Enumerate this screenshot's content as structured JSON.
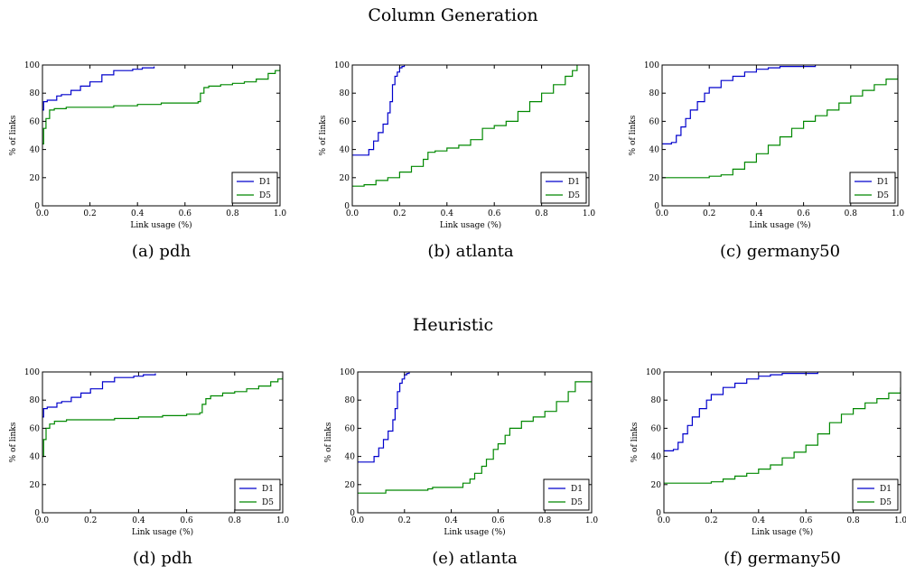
{
  "sections": {
    "top_title": "Column Generation",
    "bottom_title": "Heuristic"
  },
  "colors": {
    "D1": "#0000cc",
    "D5": "#008800",
    "axis": "#000000"
  },
  "chart_data": [
    {
      "type": "line",
      "caption": "(a) pdh",
      "xlabel": "Link usage (%)",
      "ylabel": "% of links",
      "xlim": [
        0,
        1
      ],
      "ylim": [
        0,
        100
      ],
      "xticks": [
        "0.0",
        "0.2",
        "0.4",
        "0.6",
        "0.8",
        "1.0"
      ],
      "yticks": [
        "0",
        "20",
        "40",
        "60",
        "80",
        "100"
      ],
      "legend": "lower-right",
      "series": [
        {
          "name": "D1",
          "x": [
            0,
            0.005,
            0.02,
            0.06,
            0.08,
            0.12,
            0.16,
            0.2,
            0.25,
            0.3,
            0.38,
            0.42,
            0.47
          ],
          "y": [
            68,
            74,
            75,
            78,
            79,
            82,
            85,
            88,
            93,
            96,
            97,
            98,
            99
          ]
        },
        {
          "name": "D5",
          "x": [
            0,
            0.005,
            0.015,
            0.03,
            0.05,
            0.1,
            0.2,
            0.3,
            0.4,
            0.5,
            0.6,
            0.655,
            0.665,
            0.68,
            0.7,
            0.75,
            0.8,
            0.85,
            0.9,
            0.95,
            0.98,
            1.0
          ],
          "y": [
            44,
            55,
            62,
            68,
            69,
            70,
            70,
            71,
            72,
            73,
            73,
            74,
            80,
            84,
            85,
            86,
            87,
            88,
            90,
            94,
            96,
            99
          ]
        }
      ]
    },
    {
      "type": "line",
      "caption": "(b) atlanta",
      "xlabel": "Link usage (%)",
      "ylabel": "% of links",
      "xlim": [
        0,
        1
      ],
      "ylim": [
        0,
        100
      ],
      "xticks": [
        "0.0",
        "0.2",
        "0.4",
        "0.6",
        "0.8",
        "1.0"
      ],
      "yticks": [
        "0",
        "20",
        "40",
        "60",
        "80",
        "100"
      ],
      "legend": "lower-right",
      "series": [
        {
          "name": "D1",
          "x": [
            0,
            0.06,
            0.07,
            0.09,
            0.11,
            0.13,
            0.15,
            0.16,
            0.17,
            0.18,
            0.19,
            0.2,
            0.21,
            0.22
          ],
          "y": [
            36,
            36,
            40,
            46,
            52,
            58,
            66,
            74,
            86,
            92,
            95,
            98,
            99,
            100
          ]
        },
        {
          "name": "D5",
          "x": [
            0,
            0.05,
            0.1,
            0.15,
            0.2,
            0.25,
            0.3,
            0.32,
            0.35,
            0.4,
            0.45,
            0.5,
            0.55,
            0.6,
            0.65,
            0.7,
            0.75,
            0.8,
            0.85,
            0.9,
            0.93,
            0.95
          ],
          "y": [
            14,
            15,
            18,
            20,
            24,
            28,
            33,
            38,
            39,
            41,
            43,
            47,
            55,
            57,
            60,
            67,
            74,
            80,
            86,
            92,
            96,
            100
          ]
        }
      ]
    },
    {
      "type": "line",
      "caption": "(c) germany50",
      "xlabel": "Link usage (%)",
      "ylabel": "% of links",
      "xlim": [
        0,
        1
      ],
      "ylim": [
        0,
        100
      ],
      "xticks": [
        "0.0",
        "0.2",
        "0.4",
        "0.6",
        "0.8",
        "1.0"
      ],
      "yticks": [
        "0",
        "20",
        "40",
        "60",
        "80",
        "100"
      ],
      "legend": "lower-right",
      "series": [
        {
          "name": "D1",
          "x": [
            0,
            0.04,
            0.06,
            0.08,
            0.1,
            0.12,
            0.15,
            0.18,
            0.2,
            0.25,
            0.3,
            0.35,
            0.4,
            0.45,
            0.5,
            0.55,
            0.65
          ],
          "y": [
            44,
            45,
            50,
            56,
            62,
            68,
            74,
            80,
            84,
            89,
            92,
            95,
            97,
            98,
            99,
            99,
            100
          ]
        },
        {
          "name": "D5",
          "x": [
            0,
            0.1,
            0.2,
            0.25,
            0.3,
            0.35,
            0.4,
            0.45,
            0.5,
            0.55,
            0.6,
            0.65,
            0.7,
            0.75,
            0.8,
            0.85,
            0.9,
            0.95,
            1.0
          ],
          "y": [
            20,
            20,
            21,
            22,
            26,
            31,
            37,
            43,
            49,
            55,
            60,
            64,
            68,
            73,
            78,
            82,
            86,
            90,
            93
          ]
        }
      ]
    },
    {
      "type": "line",
      "caption": "(d) pdh",
      "xlabel": "Link usage (%)",
      "ylabel": "% of links",
      "xlim": [
        0,
        1
      ],
      "ylim": [
        0,
        100
      ],
      "xticks": [
        "0.0",
        "0.2",
        "0.4",
        "0.6",
        "0.8",
        "1.0"
      ],
      "yticks": [
        "0",
        "20",
        "40",
        "60",
        "80",
        "100"
      ],
      "legend": "lower-right",
      "series": [
        {
          "name": "D1",
          "x": [
            0,
            0.005,
            0.02,
            0.06,
            0.08,
            0.12,
            0.16,
            0.2,
            0.25,
            0.3,
            0.38,
            0.42,
            0.47
          ],
          "y": [
            68,
            74,
            75,
            78,
            79,
            82,
            85,
            88,
            93,
            96,
            97,
            98,
            99
          ]
        },
        {
          "name": "D5",
          "x": [
            0,
            0.005,
            0.015,
            0.03,
            0.05,
            0.1,
            0.2,
            0.3,
            0.4,
            0.5,
            0.6,
            0.655,
            0.665,
            0.68,
            0.7,
            0.75,
            0.8,
            0.85,
            0.9,
            0.95,
            0.98,
            1.0
          ],
          "y": [
            40,
            52,
            60,
            63,
            65,
            66,
            66,
            67,
            68,
            69,
            70,
            71,
            77,
            81,
            83,
            85,
            86,
            88,
            90,
            93,
            95,
            97
          ]
        }
      ]
    },
    {
      "type": "line",
      "caption": "(e) atlanta",
      "xlabel": "Link usage (%)",
      "ylabel": "% of links",
      "xlim": [
        0,
        1
      ],
      "ylim": [
        0,
        100
      ],
      "xticks": [
        "0.0",
        "0.2",
        "0.4",
        "0.6",
        "0.8",
        "1.0"
      ],
      "yticks": [
        "0",
        "20",
        "40",
        "60",
        "80",
        "100"
      ],
      "legend": "lower-right",
      "series": [
        {
          "name": "D1",
          "x": [
            0,
            0.06,
            0.07,
            0.09,
            0.11,
            0.13,
            0.15,
            0.16,
            0.17,
            0.18,
            0.19,
            0.2,
            0.21,
            0.22
          ],
          "y": [
            36,
            36,
            40,
            46,
            52,
            58,
            66,
            74,
            86,
            92,
            95,
            98,
            99,
            100
          ]
        },
        {
          "name": "D5",
          "x": [
            0,
            0.1,
            0.12,
            0.2,
            0.3,
            0.32,
            0.4,
            0.45,
            0.48,
            0.5,
            0.53,
            0.55,
            0.58,
            0.6,
            0.63,
            0.65,
            0.7,
            0.75,
            0.8,
            0.85,
            0.9,
            0.93,
            1.0
          ],
          "y": [
            14,
            14,
            16,
            16,
            17,
            18,
            18,
            21,
            24,
            28,
            33,
            38,
            45,
            49,
            55,
            60,
            65,
            68,
            72,
            79,
            86,
            93,
            93
          ]
        }
      ]
    },
    {
      "type": "line",
      "caption": "(f) germany50",
      "xlabel": "Link usage (%)",
      "ylabel": "% of links",
      "xlim": [
        0,
        1
      ],
      "ylim": [
        0,
        100
      ],
      "xticks": [
        "0.0",
        "0.2",
        "0.4",
        "0.6",
        "0.8",
        "1.0"
      ],
      "yticks": [
        "0",
        "20",
        "40",
        "60",
        "80",
        "100"
      ],
      "legend": "lower-right",
      "series": [
        {
          "name": "D1",
          "x": [
            0,
            0.04,
            0.06,
            0.08,
            0.1,
            0.12,
            0.15,
            0.18,
            0.2,
            0.25,
            0.3,
            0.35,
            0.4,
            0.45,
            0.5,
            0.55,
            0.65
          ],
          "y": [
            44,
            45,
            50,
            56,
            62,
            68,
            74,
            80,
            84,
            89,
            92,
            95,
            97,
            98,
            99,
            99,
            100
          ]
        },
        {
          "name": "D5",
          "x": [
            0,
            0.1,
            0.2,
            0.25,
            0.3,
            0.35,
            0.4,
            0.45,
            0.5,
            0.55,
            0.6,
            0.65,
            0.7,
            0.75,
            0.8,
            0.85,
            0.9,
            0.95,
            1.0
          ],
          "y": [
            21,
            21,
            22,
            24,
            26,
            28,
            31,
            34,
            39,
            43,
            48,
            56,
            64,
            70,
            74,
            78,
            81,
            85,
            89
          ]
        }
      ]
    }
  ]
}
